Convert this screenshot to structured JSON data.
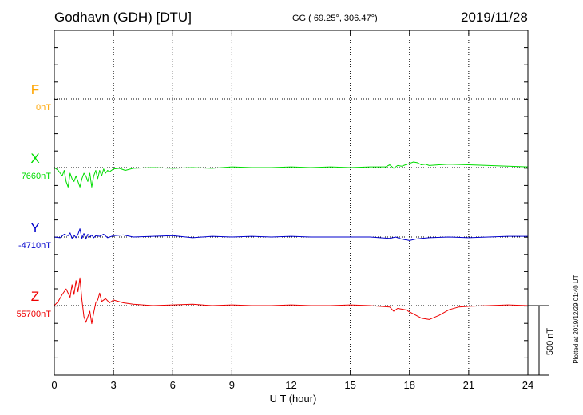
{
  "header": {
    "station": "Godhavn (GDH)  [DTU]",
    "coords": "GG ( 69.25°, 306.47°)",
    "date": "2019/11/28"
  },
  "side_note": "Plotted at 2019/12/29 01:40 UT",
  "colors": {
    "F": "#ffa500",
    "X": "#00dd00",
    "Y": "#0000cc",
    "Z": "#ee0000",
    "grid": "#000000"
  },
  "chart_data": {
    "type": "line",
    "xlabel": "U T (hour)",
    "xlim": [
      0,
      24
    ],
    "x_ticks": [
      "0",
      "3",
      "6",
      "9",
      "12",
      "15",
      "18",
      "21",
      "24"
    ],
    "scale_label": "500 nT",
    "scale_nT": 500,
    "series": [
      {
        "name": "F",
        "baseline_label": "0nT",
        "x": [],
        "values": []
      },
      {
        "name": "X",
        "baseline_label": "7660nT",
        "x": [
          0,
          0.2,
          0.4,
          0.5,
          0.6,
          0.7,
          0.8,
          0.9,
          1.0,
          1.1,
          1.2,
          1.3,
          1.4,
          1.5,
          1.6,
          1.7,
          1.8,
          1.9,
          2.0,
          2.1,
          2.2,
          2.3,
          2.4,
          2.5,
          2.6,
          2.7,
          2.8,
          3.0,
          3.3,
          3.6,
          4.0,
          5,
          6,
          7,
          8,
          9,
          10,
          11,
          12,
          13,
          14,
          15,
          16,
          16.8,
          17.0,
          17.2,
          17.4,
          17.6,
          17.8,
          18.0,
          18.2,
          18.4,
          18.6,
          18.8,
          19.0,
          19.5,
          20,
          21,
          22,
          23,
          24
        ],
        "values": [
          0,
          -20,
          -60,
          -20,
          -100,
          -140,
          -40,
          -80,
          -100,
          -60,
          -100,
          -140,
          -80,
          -40,
          -60,
          -100,
          -40,
          -140,
          -60,
          -20,
          -80,
          -20,
          -60,
          -10,
          -40,
          -20,
          -30,
          -10,
          -5,
          -20,
          -5,
          0,
          -5,
          0,
          -5,
          5,
          0,
          0,
          5,
          0,
          5,
          0,
          5,
          5,
          20,
          -5,
          15,
          10,
          20,
          30,
          40,
          35,
          20,
          25,
          15,
          20,
          25,
          20,
          15,
          10,
          5
        ]
      },
      {
        "name": "Y",
        "baseline_label": "-4710nT",
        "x": [
          0,
          0.3,
          0.5,
          0.7,
          0.8,
          0.9,
          1.0,
          1.1,
          1.2,
          1.3,
          1.4,
          1.5,
          1.6,
          1.7,
          1.8,
          1.9,
          2.0,
          2.1,
          2.3,
          2.5,
          2.7,
          3.0,
          3.5,
          4,
          5,
          6,
          7,
          8,
          9,
          10,
          11,
          12,
          13,
          14,
          15,
          16,
          17.0,
          17.3,
          17.6,
          18.0,
          18.3,
          18.6,
          19,
          20,
          21,
          22,
          23,
          24
        ],
        "values": [
          0,
          -5,
          20,
          10,
          30,
          -10,
          15,
          -5,
          20,
          60,
          -10,
          25,
          -15,
          20,
          0,
          15,
          -5,
          10,
          5,
          20,
          -5,
          10,
          15,
          0,
          5,
          10,
          -5,
          5,
          0,
          5,
          0,
          5,
          0,
          0,
          0,
          0,
          -10,
          0,
          -15,
          -25,
          -15,
          -10,
          -5,
          0,
          -5,
          0,
          5,
          5
        ]
      },
      {
        "name": "Z",
        "baseline_label": "55700nT",
        "x": [
          0,
          0.2,
          0.4,
          0.6,
          0.8,
          0.9,
          1.0,
          1.1,
          1.2,
          1.3,
          1.4,
          1.5,
          1.6,
          1.7,
          1.8,
          1.9,
          2.0,
          2.1,
          2.2,
          2.3,
          2.4,
          2.6,
          2.8,
          3.0,
          3.5,
          4,
          5,
          6,
          7,
          8,
          9,
          10,
          11,
          12,
          13,
          14,
          15,
          16,
          17.0,
          17.2,
          17.4,
          17.8,
          18.2,
          18.6,
          19.0,
          19.5,
          20,
          20.5,
          21,
          22,
          23,
          24
        ],
        "values": [
          0,
          30,
          80,
          120,
          60,
          150,
          80,
          180,
          100,
          200,
          40,
          -80,
          -120,
          -80,
          -40,
          -130,
          -50,
          20,
          40,
          90,
          30,
          50,
          20,
          40,
          20,
          10,
          0,
          5,
          10,
          0,
          5,
          0,
          0,
          5,
          0,
          0,
          5,
          0,
          -10,
          -40,
          -20,
          -30,
          -60,
          -90,
          -100,
          -70,
          -30,
          -10,
          -5,
          0,
          5,
          0
        ]
      }
    ]
  }
}
